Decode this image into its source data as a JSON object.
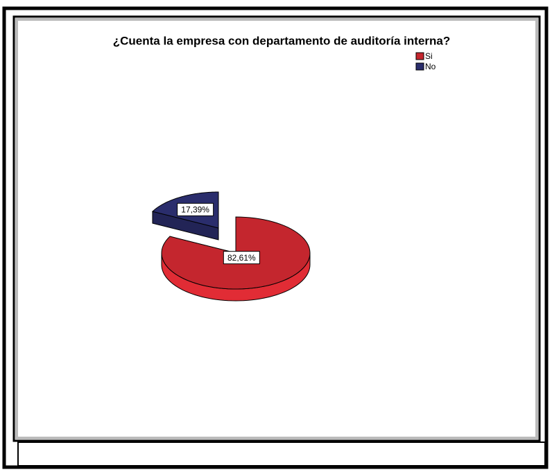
{
  "chart_data": {
    "type": "pie",
    "title": "¿Cuenta la empresa con departamento de auditoría interna?",
    "categories": [
      "Si",
      "No"
    ],
    "values": [
      82.61,
      17.39
    ],
    "value_labels": [
      "82,61%",
      "17,39%"
    ],
    "colors": [
      "#c4262e",
      "#2a2d6c"
    ],
    "explode": [
      false,
      true
    ]
  }
}
